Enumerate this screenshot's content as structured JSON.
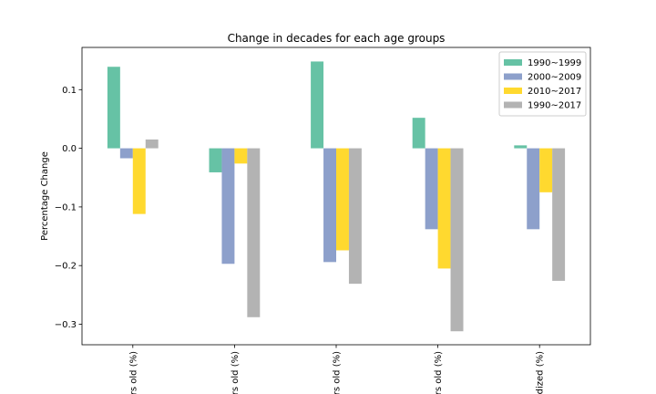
{
  "chart_data": {
    "type": "bar",
    "title": "Change in decades for each age groups",
    "xlabel": "",
    "ylabel": "Percentage Change",
    "ylim": [
      -0.335,
      0.172
    ],
    "yticks": [
      "0.1",
      "0.0",
      "−0.1",
      "−0.2",
      "−0.3"
    ],
    "categories": [
      "rs old (%)",
      "rs old (%)",
      "rs old (%)",
      "rs old (%)",
      "dized (%)"
    ],
    "series": [
      {
        "name": "1990~1999",
        "color": "#66c2a5",
        "values": [
          0.139,
          -0.041,
          0.148,
          0.052,
          0.005
        ]
      },
      {
        "name": "2000~2009",
        "color": "#8da0cb",
        "values": [
          -0.017,
          -0.197,
          -0.194,
          -0.138,
          -0.138
        ]
      },
      {
        "name": "2010~2017",
        "color": "#ffd92f",
        "values": [
          -0.112,
          -0.026,
          -0.174,
          -0.205,
          -0.075
        ]
      },
      {
        "name": "1990~2017",
        "color": "#b3b3b3",
        "values": [
          0.015,
          -0.288,
          -0.231,
          -0.312,
          -0.226
        ]
      }
    ],
    "legend": "top-right",
    "grid": false
  }
}
